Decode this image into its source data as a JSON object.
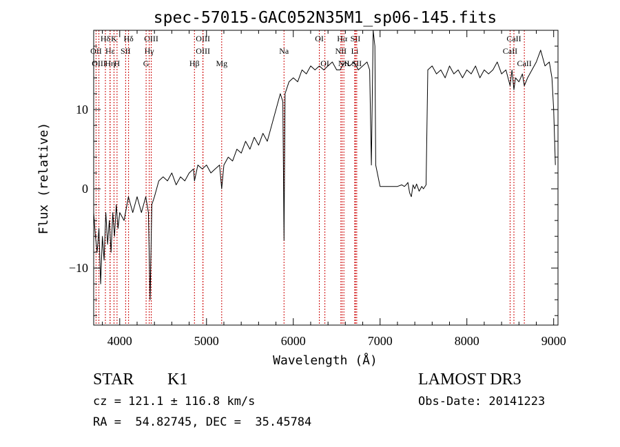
{
  "chart_data": {
    "type": "line",
    "title": "spec-57015-GAC052N35M1_sp06-145.fits",
    "xlabel": "Wavelength (Å)",
    "ylabel": "Flux (relative)",
    "xlim": [
      3700,
      9050
    ],
    "ylim": [
      -17.2,
      20.0
    ],
    "xticks": [
      4000,
      5000,
      6000,
      7000,
      8000,
      9000
    ],
    "yticks": [
      -10,
      0,
      10
    ],
    "grid": false,
    "legend": "none",
    "line_color": "#000000",
    "marker_color": "#cc0000",
    "series": [
      {
        "points": [
          [
            3700,
            -3
          ],
          [
            3720,
            -6
          ],
          [
            3740,
            -8
          ],
          [
            3760,
            -5
          ],
          [
            3780,
            -12
          ],
          [
            3800,
            -6
          ],
          [
            3820,
            -9
          ],
          [
            3840,
            -3
          ],
          [
            3860,
            -7
          ],
          [
            3880,
            -4
          ],
          [
            3900,
            -8
          ],
          [
            3920,
            -3
          ],
          [
            3940,
            -6
          ],
          [
            3960,
            -2
          ],
          [
            3980,
            -5
          ],
          [
            4000,
            -3
          ],
          [
            4050,
            -4
          ],
          [
            4100,
            -1
          ],
          [
            4150,
            -3
          ],
          [
            4200,
            -1
          ],
          [
            4250,
            -3
          ],
          [
            4300,
            -1
          ],
          [
            4330,
            -3
          ],
          [
            4350,
            -14
          ],
          [
            4370,
            -2
          ],
          [
            4400,
            -1
          ],
          [
            4450,
            1
          ],
          [
            4500,
            1.5
          ],
          [
            4550,
            1
          ],
          [
            4600,
            2
          ],
          [
            4650,
            0.5
          ],
          [
            4700,
            1.5
          ],
          [
            4750,
            1
          ],
          [
            4800,
            2
          ],
          [
            4850,
            2.5
          ],
          [
            4861,
            1
          ],
          [
            4900,
            3
          ],
          [
            4950,
            2.5
          ],
          [
            5000,
            3
          ],
          [
            5050,
            2
          ],
          [
            5100,
            2.5
          ],
          [
            5150,
            3
          ],
          [
            5175,
            0
          ],
          [
            5200,
            3
          ],
          [
            5250,
            4
          ],
          [
            5300,
            3.5
          ],
          [
            5350,
            5
          ],
          [
            5400,
            4.5
          ],
          [
            5450,
            6
          ],
          [
            5500,
            5
          ],
          [
            5550,
            6.5
          ],
          [
            5600,
            5.5
          ],
          [
            5650,
            7
          ],
          [
            5700,
            6
          ],
          [
            5750,
            8
          ],
          [
            5800,
            10
          ],
          [
            5850,
            12
          ],
          [
            5880,
            11
          ],
          [
            5893,
            -6.5
          ],
          [
            5905,
            12
          ],
          [
            5950,
            13.5
          ],
          [
            6000,
            14
          ],
          [
            6050,
            13.5
          ],
          [
            6100,
            15
          ],
          [
            6150,
            14.5
          ],
          [
            6200,
            15.5
          ],
          [
            6250,
            15
          ],
          [
            6300,
            15.5
          ],
          [
            6350,
            15
          ],
          [
            6400,
            15.5
          ],
          [
            6450,
            16
          ],
          [
            6500,
            15
          ],
          [
            6540,
            15
          ],
          [
            6563,
            15.5
          ],
          [
            6600,
            16
          ],
          [
            6650,
            15.5
          ],
          [
            6700,
            16
          ],
          [
            6750,
            15
          ],
          [
            6800,
            15.5
          ],
          [
            6850,
            16
          ],
          [
            6880,
            15
          ],
          [
            6900,
            3
          ],
          [
            6920,
            20
          ],
          [
            6940,
            18
          ],
          [
            6950,
            3
          ],
          [
            7000,
            0.3
          ],
          [
            7100,
            0.3
          ],
          [
            7200,
            0.3
          ],
          [
            7250,
            0.5
          ],
          [
            7280,
            0.3
          ],
          [
            7300,
            0.5
          ],
          [
            7320,
            0.8
          ],
          [
            7340,
            -0.5
          ],
          [
            7360,
            -1
          ],
          [
            7380,
            0.5
          ],
          [
            7400,
            0
          ],
          [
            7420,
            0.6
          ],
          [
            7450,
            -0.3
          ],
          [
            7480,
            0.3
          ],
          [
            7500,
            0
          ],
          [
            7530,
            0.5
          ],
          [
            7550,
            15
          ],
          [
            7600,
            15.5
          ],
          [
            7650,
            14.5
          ],
          [
            7700,
            15
          ],
          [
            7750,
            14
          ],
          [
            7800,
            15.5
          ],
          [
            7850,
            14.5
          ],
          [
            7900,
            15
          ],
          [
            7950,
            14
          ],
          [
            8000,
            15
          ],
          [
            8050,
            14.5
          ],
          [
            8100,
            15.5
          ],
          [
            8150,
            14
          ],
          [
            8200,
            15
          ],
          [
            8250,
            14.5
          ],
          [
            8300,
            15
          ],
          [
            8350,
            16
          ],
          [
            8400,
            14.5
          ],
          [
            8450,
            15
          ],
          [
            8498,
            13
          ],
          [
            8520,
            15
          ],
          [
            8542,
            12.5
          ],
          [
            8560,
            14
          ],
          [
            8600,
            13.5
          ],
          [
            8640,
            14.5
          ],
          [
            8662,
            13
          ],
          [
            8700,
            14
          ],
          [
            8750,
            15
          ],
          [
            8800,
            16
          ],
          [
            8850,
            17.5
          ],
          [
            8900,
            15.5
          ],
          [
            8950,
            16
          ],
          [
            8980,
            14
          ],
          [
            9000,
            10
          ],
          [
            9020,
            3
          ]
        ]
      }
    ],
    "line_markers": [
      {
        "name": "Hδ",
        "wavelength": 3835,
        "row": 1
      },
      {
        "name": "OII",
        "wavelength": 3727,
        "row": 2
      },
      {
        "name": "OIII",
        "wavelength": 3760,
        "row": 3
      },
      {
        "name": "K",
        "wavelength": 3934,
        "row": 1
      },
      {
        "name": "Hε",
        "wavelength": 3889,
        "row": 2
      },
      {
        "name": "SII",
        "wavelength": 4068,
        "row": 2
      },
      {
        "name": "Hη",
        "wavelength": 3889,
        "row": 3
      },
      {
        "name": "H",
        "wavelength": 3969,
        "row": 3
      },
      {
        "name": "Hδ",
        "wavelength": 4102,
        "row": 1
      },
      {
        "name": "OIII",
        "wavelength": 4363,
        "row": 1
      },
      {
        "name": "Hγ",
        "wavelength": 4340,
        "row": 2
      },
      {
        "name": "G",
        "wavelength": 4304,
        "row": 3
      },
      {
        "name": "OIII",
        "wavelength": 4959,
        "row": 1
      },
      {
        "name": "OIII",
        "wavelength": 4959,
        "row": 2
      },
      {
        "name": "Hβ",
        "wavelength": 4861,
        "row": 3
      },
      {
        "name": "Mg",
        "wavelength": 5175,
        "row": 3
      },
      {
        "name": "Na",
        "wavelength": 5893,
        "row": 2
      },
      {
        "name": "OI",
        "wavelength": 6300,
        "row": 1
      },
      {
        "name": "OI",
        "wavelength": 6364,
        "row": 3
      },
      {
        "name": "Hα",
        "wavelength": 6563,
        "row": 1
      },
      {
        "name": "SII",
        "wavelength": 6716,
        "row": 1
      },
      {
        "name": "NII",
        "wavelength": 6548,
        "row": 2
      },
      {
        "name": "Li",
        "wavelength": 6708,
        "row": 2
      },
      {
        "name": "NII",
        "wavelength": 6583,
        "row": 3
      },
      {
        "name": "SII",
        "wavelength": 6731,
        "row": 3
      },
      {
        "name": "CaII",
        "wavelength": 8542,
        "row": 1
      },
      {
        "name": "CaII",
        "wavelength": 8498,
        "row": 2
      },
      {
        "name": "CaII",
        "wavelength": 8662,
        "row": 3
      }
    ]
  },
  "info": {
    "class": "STAR",
    "subclass": "K1",
    "survey": "LAMOST DR3",
    "cz": "cz = 121.1 ± 116.8 km/s",
    "obs_date": "Obs-Date: 20141223",
    "coords": "RA =  54.82745, DEC =  35.45784"
  }
}
